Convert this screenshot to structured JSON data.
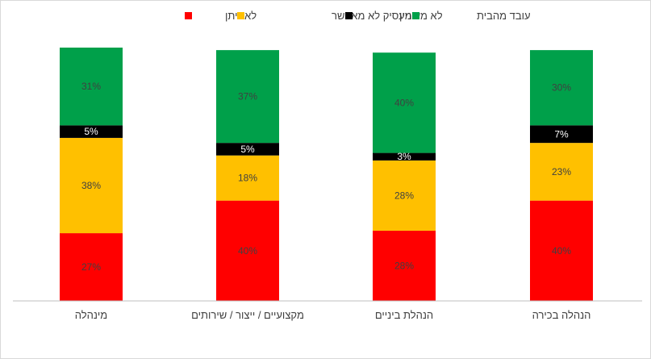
{
  "chart_data": {
    "type": "bar",
    "stacked": true,
    "percent": true,
    "categories": [
      "מינהלה",
      "מקצועיים / ייצור / שירותים",
      "הנהלת ביניים",
      "הנהלה בכירה"
    ],
    "series": [
      {
        "name": "לא ניתן",
        "color": "#ff0000",
        "values": [
          27,
          40,
          28,
          40
        ]
      },
      {
        "name": "המעסיק לא מאפשר",
        "color": "#ffc000",
        "values": [
          38,
          18,
          28,
          23
        ]
      },
      {
        "name": "לא מעוניין",
        "color": "#000000",
        "values": [
          5,
          5,
          3,
          7
        ]
      },
      {
        "name": "עובד מהבית",
        "color": "#00a04a",
        "values": [
          31,
          37,
          40,
          30
        ]
      }
    ],
    "legend": "top",
    "grid": false,
    "ylim": [
      0,
      101
    ]
  }
}
